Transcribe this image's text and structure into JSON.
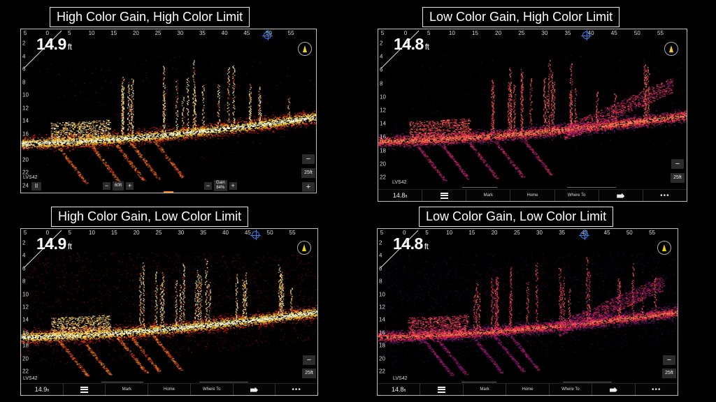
{
  "panels": [
    {
      "caption": "High Color Gain, High Color Limit",
      "depth": "14.9",
      "depth_unit": "ft",
      "source": "LVS42",
      "pause": "II",
      "range_label": "25ft",
      "minus": "−",
      "plus": "+",
      "range_value": "60ft",
      "gain_label": "Gain",
      "gain_value": "84%",
      "x_ticks": [
        "5",
        "0",
        "5",
        "10",
        "15",
        "20",
        "25",
        "30",
        "35",
        "40",
        "45",
        "50",
        "55"
      ],
      "y_ticks": [
        "2",
        "4",
        "6",
        "8",
        "10",
        "12",
        "14",
        "16",
        "18",
        "20",
        "22",
        "24"
      ],
      "palette": "hot",
      "compass_icon": "compass-icon",
      "target_icon": "crosshair-icon"
    },
    {
      "caption": "Low Color Gain, High Color Limit",
      "depth": "14.8",
      "depth_unit": "ft",
      "source": "LVS42",
      "range_label": "25ft",
      "minus": "−",
      "x_ticks": [
        "5",
        "0",
        "5",
        "10",
        "15",
        "20",
        "25",
        "30",
        "35",
        "40",
        "45",
        "50",
        "55"
      ],
      "y_ticks": [
        "2",
        "4",
        "6",
        "8",
        "10",
        "12",
        "14",
        "16",
        "18",
        "20",
        "22"
      ],
      "palette": "magenta",
      "toolbar": {
        "depth": "14.8",
        "depth_unit": "ft",
        "mark": "Mark",
        "home": "Home",
        "where_to": "Where To",
        "more": "•••"
      }
    },
    {
      "caption": "High Color Gain, Low Color Limit",
      "depth": "14.9",
      "depth_unit": "ft",
      "source": "LVS42",
      "range_label": "25ft",
      "minus": "−",
      "x_ticks": [
        "5",
        "0",
        "5",
        "10",
        "15",
        "20",
        "25",
        "30",
        "35",
        "40",
        "45",
        "50",
        "55"
      ],
      "y_ticks": [
        "2",
        "4",
        "6",
        "8",
        "10",
        "12",
        "14",
        "16",
        "18",
        "20",
        "22"
      ],
      "palette": "hot-haze",
      "toolbar": {
        "depth": "14.9",
        "depth_unit": "ft",
        "mark": "Mark",
        "home": "Home",
        "where_to": "Where To",
        "more": "•••"
      }
    },
    {
      "caption": "Low Color Gain, Low Color Limit",
      "depth": "14.8",
      "depth_unit": "ft",
      "source": "LVS42",
      "range_label": "25ft",
      "minus": "−",
      "x_ticks": [
        "5",
        "0",
        "5",
        "10",
        "15",
        "20",
        "25",
        "30",
        "35",
        "40",
        "45",
        "50",
        "55"
      ],
      "y_ticks": [
        "2",
        "4",
        "6",
        "8",
        "10",
        "12",
        "14",
        "16",
        "18",
        "20",
        "22"
      ],
      "palette": "magenta-haze",
      "toolbar": {
        "depth": "14.8",
        "depth_unit": "ft",
        "mark": "Mark",
        "home": "Home",
        "where_to": "Where To",
        "more": "•••"
      }
    }
  ],
  "colors": {
    "background": "#000000",
    "panel_border": "#bfbfbf",
    "hot_core": "#fff6b0",
    "hot_mid": "#f4a21c",
    "hot_edge": "#b5131a",
    "magenta_core": "#ff5a4a",
    "magenta_mid": "#d0206a",
    "magenta_edge": "#6a1260",
    "crosshair": "#2f7fe8",
    "compass_needle": "#e8d21a"
  }
}
